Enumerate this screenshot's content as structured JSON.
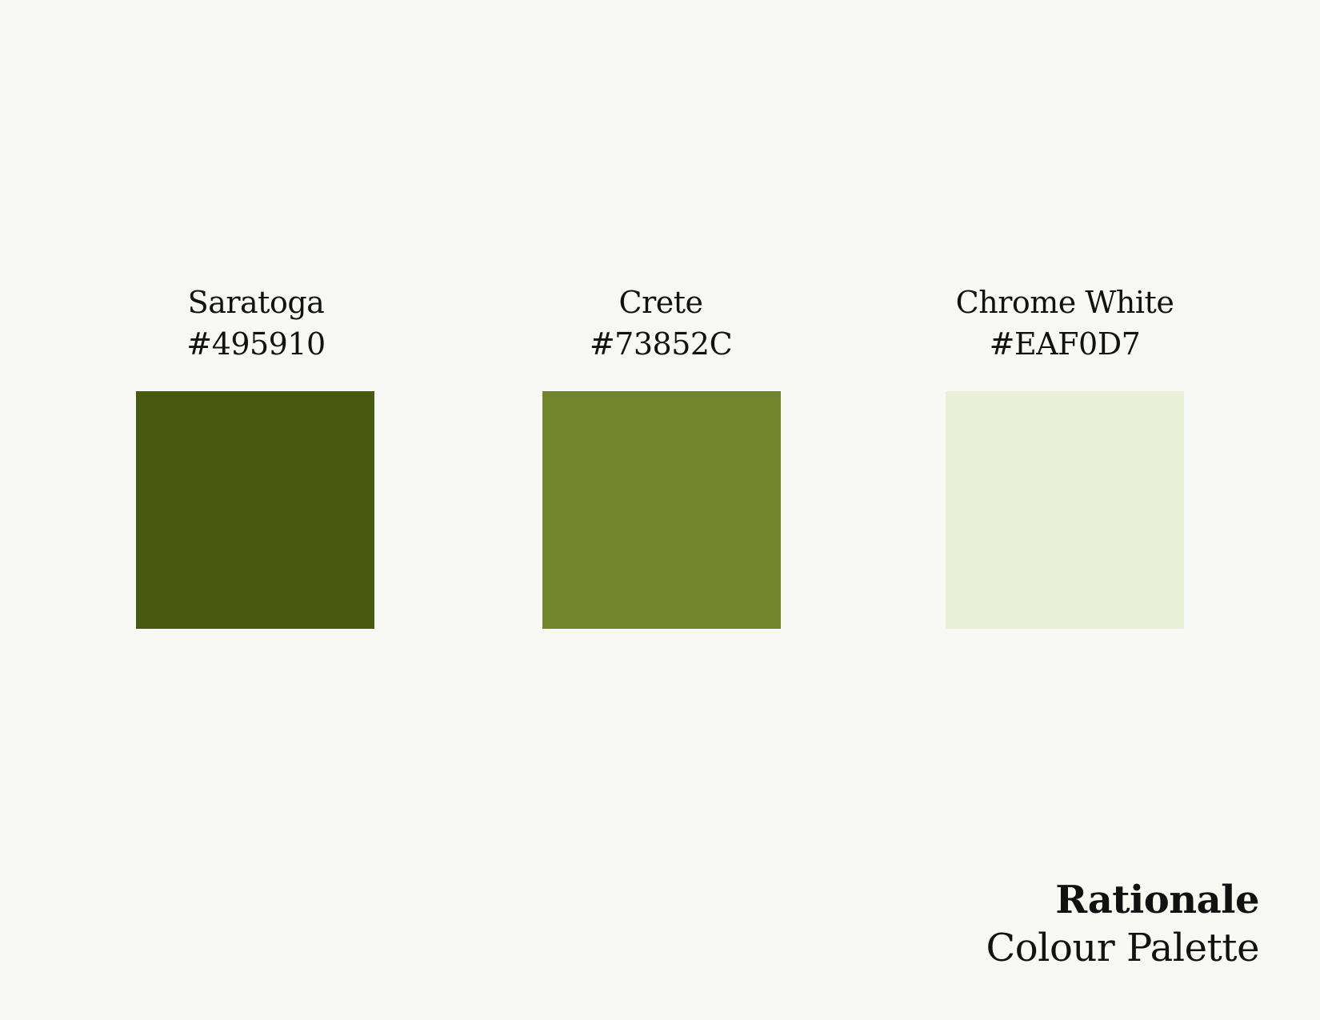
{
  "background_color": "#F8F9F4",
  "swatches": [
    {
      "name": "Saratoga",
      "hex": "#495910",
      "color": "#495910"
    },
    {
      "name": "Crete",
      "hex": "#73852C",
      "color": "#73852C"
    },
    {
      "name": "Chrome White",
      "hex": "#EAF0D7",
      "color": "#EAF0D7"
    }
  ],
  "footer": {
    "title": "Rationale",
    "subtitle": "Colour Palette"
  }
}
